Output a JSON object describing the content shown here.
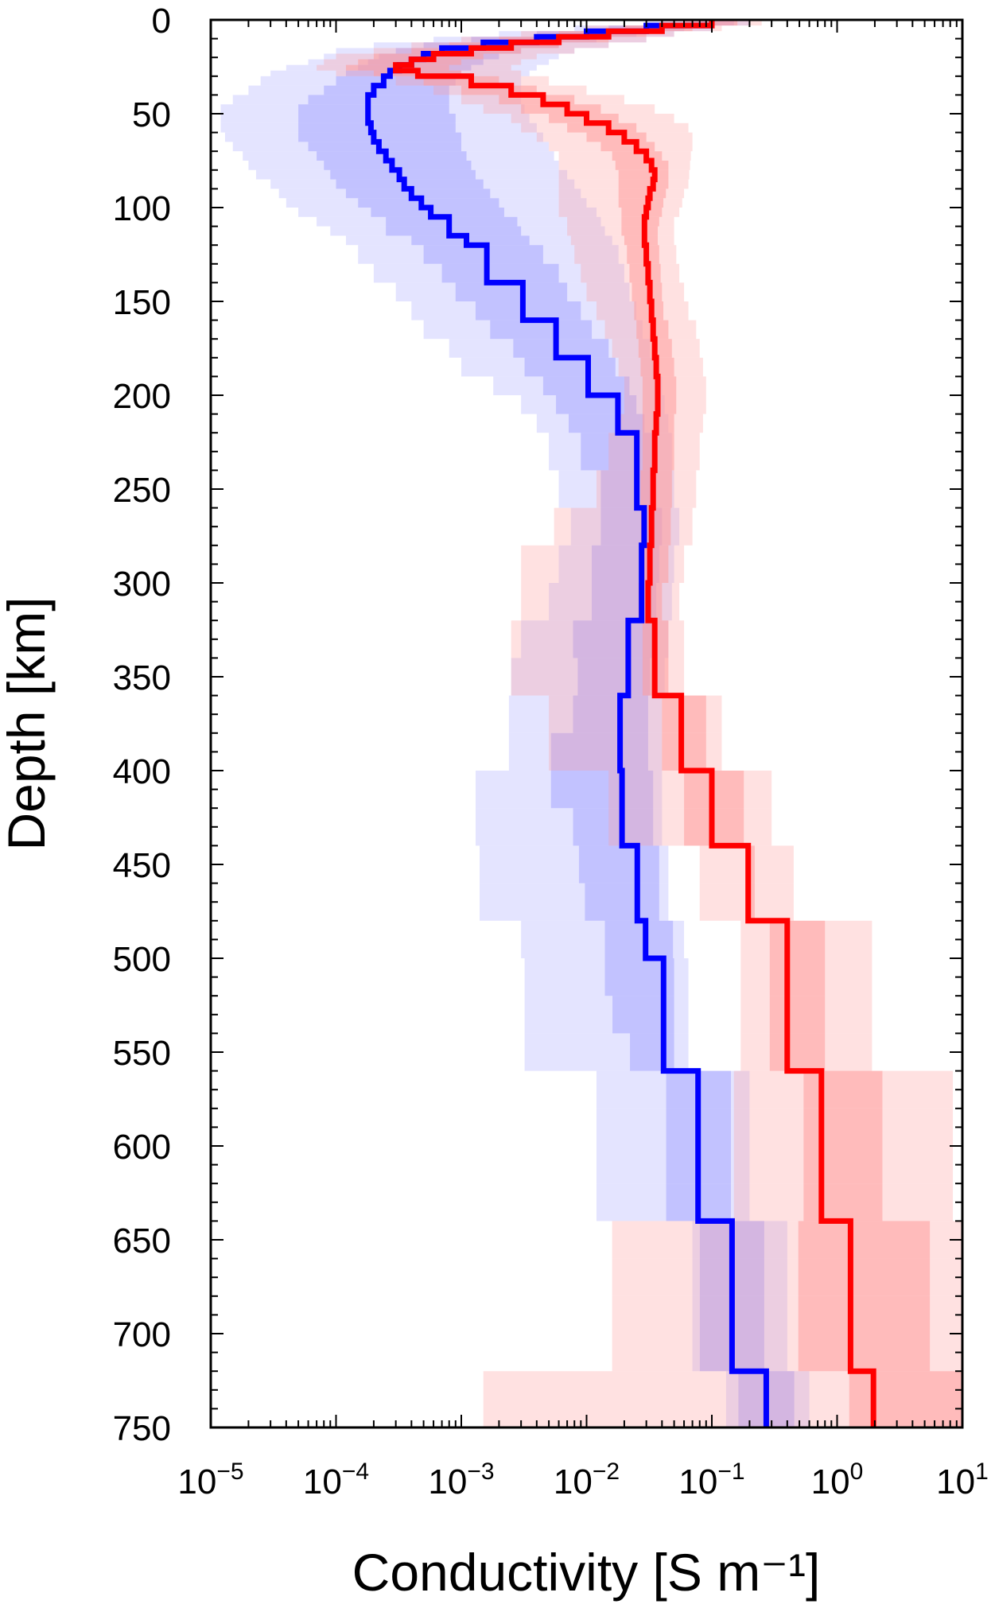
{
  "chart_data": {
    "type": "line",
    "xlabel": "Conductivity [S m⁻¹]",
    "ylabel": "Depth [km]",
    "x_scale": "log",
    "xlim": [
      1e-05,
      10
    ],
    "ylim": [
      0,
      750
    ],
    "y_inverted": true,
    "x_ticks": [
      {
        "value": 1e-05,
        "base": "10",
        "exp": "−5"
      },
      {
        "value": 0.0001,
        "base": "10",
        "exp": "−4"
      },
      {
        "value": 0.001,
        "base": "10",
        "exp": "−3"
      },
      {
        "value": 0.01,
        "base": "10",
        "exp": "−2"
      },
      {
        "value": 0.1,
        "base": "10",
        "exp": "−1"
      },
      {
        "value": 1,
        "base": "10",
        "exp": "0"
      },
      {
        "value": 10,
        "base": "10",
        "exp": "1"
      }
    ],
    "y_ticks": [
      0,
      50,
      100,
      150,
      200,
      250,
      300,
      350,
      400,
      450,
      500,
      550,
      600,
      650,
      700,
      750
    ],
    "grid": false,
    "colors": {
      "blue": "#0000ff",
      "red": "#ff0000",
      "blue_band": "#a6a6ff",
      "red_band": "#ff9c9c"
    },
    "series": [
      {
        "color": "blue",
        "depth_bounds": [
          0,
          3,
          6,
          9,
          12,
          15,
          18,
          21,
          24,
          27,
          30,
          35,
          40,
          45,
          50,
          55,
          60,
          65,
          70,
          75,
          80,
          85,
          90,
          95,
          100,
          105,
          110,
          115,
          120,
          130,
          140,
          150,
          160,
          170,
          180,
          190,
          200,
          210,
          220,
          240,
          260,
          280,
          300,
          320,
          340,
          360,
          380,
          400,
          420,
          440,
          460,
          480,
          500,
          520,
          540,
          560,
          580,
          600,
          620,
          640,
          660,
          680,
          700,
          720,
          750
        ],
        "conductivity": [
          0.1,
          0.03,
          0.01,
          0.004,
          0.0015,
          0.0007,
          0.0005,
          0.0004,
          0.00032,
          0.00027,
          0.00024,
          0.0002,
          0.00018,
          0.00018,
          0.00018,
          0.00019,
          0.0002,
          0.00022,
          0.00025,
          0.00028,
          0.00032,
          0.00035,
          0.0004,
          0.00048,
          0.00057,
          0.0008,
          0.0008,
          0.0011,
          0.0016,
          0.0016,
          0.0031,
          0.0031,
          0.0057,
          0.0057,
          0.0103,
          0.0103,
          0.0178,
          0.0178,
          0.0252,
          0.0252,
          0.0288,
          0.0275,
          0.0275,
          0.0215,
          0.0215,
          0.0185,
          0.0185,
          0.0192,
          0.0192,
          0.0254,
          0.0254,
          0.0296,
          0.0412,
          0.0412,
          0.0412,
          0.0777,
          0.0777,
          0.0777,
          0.0777,
          0.145,
          0.145,
          0.145,
          0.145,
          0.272,
          0.272
        ],
        "band_inner_low": [
          0.06,
          0.015,
          0.004,
          0.0012,
          0.0005,
          0.0003,
          0.00022,
          0.00018,
          0.00015,
          0.00012,
          0.0001,
          8e-05,
          6e-05,
          5e-05,
          5e-05,
          5e-05,
          5e-05,
          6e-05,
          7e-05,
          8e-05,
          9e-05,
          0.0001,
          0.00012,
          0.00015,
          0.00019,
          0.00025,
          0.00025,
          0.0004,
          0.0005,
          0.0007,
          0.0009,
          0.0013,
          0.0017,
          0.0026,
          0.0032,
          0.0045,
          0.0057,
          0.0072,
          0.009,
          0.013,
          0.013,
          0.011,
          0.011,
          0.0078,
          0.0085,
          0.0078,
          0.0052,
          0.0052,
          0.0078,
          0.0087,
          0.0097,
          0.014,
          0.014,
          0.0161,
          0.0222,
          0.0432,
          0.0432,
          0.0432,
          0.0432,
          0.0802,
          0.0802,
          0.0802,
          0.0802,
          0.163,
          0.163
        ],
        "band_inner_high": [
          0.15,
          0.06,
          0.025,
          0.012,
          0.006,
          0.003,
          0.002,
          0.0015,
          0.0012,
          0.001,
          0.0009,
          0.0008,
          0.0008,
          0.0008,
          0.0009,
          0.0009,
          0.001,
          0.001,
          0.0011,
          0.0012,
          0.0013,
          0.0015,
          0.0017,
          0.002,
          0.0022,
          0.0028,
          0.003,
          0.0035,
          0.0045,
          0.006,
          0.007,
          0.009,
          0.011,
          0.015,
          0.017,
          0.022,
          0.025,
          0.029,
          0.033,
          0.034,
          0.04,
          0.038,
          0.036,
          0.034,
          0.032,
          0.031,
          0.031,
          0.034,
          0.034,
          0.038,
          0.038,
          0.049,
          0.05,
          0.05,
          0.05,
          0.142,
          0.142,
          0.142,
          0.142,
          0.262,
          0.262,
          0.262,
          0.262,
          0.455,
          0.455
        ],
        "band_outer_low": [
          0.03,
          0.008,
          0.002,
          0.0006,
          0.0002,
          0.0001,
          8e-05,
          6e-05,
          4e-05,
          3e-05,
          2.5e-05,
          2e-05,
          1.5e-05,
          1.2e-05,
          1.2e-05,
          1.2e-05,
          1.3e-05,
          1.5e-05,
          1.8e-05,
          2e-05,
          2.3e-05,
          3e-05,
          3.5e-05,
          4e-05,
          5e-05,
          7e-05,
          9e-05,
          0.00012,
          0.00015,
          0.0002,
          0.0003,
          0.0004,
          0.0005,
          0.0008,
          0.001,
          0.0018,
          0.003,
          0.004,
          0.005,
          0.006,
          0.0075,
          0.006,
          0.005,
          0.003,
          0.0025,
          0.0024,
          0.0024,
          0.0013,
          0.0013,
          0.0014,
          0.0014,
          0.003,
          0.0032,
          0.0032,
          0.0032,
          0.012,
          0.012,
          0.012,
          0.012,
          0.07,
          0.07,
          0.07,
          0.07,
          0.13,
          0.13
        ],
        "band_outer_high": [
          0.2,
          0.1,
          0.05,
          0.03,
          0.015,
          0.008,
          0.006,
          0.005,
          0.004,
          0.0035,
          0.003,
          0.003,
          0.003,
          0.0032,
          0.0035,
          0.004,
          0.0045,
          0.005,
          0.0055,
          0.006,
          0.007,
          0.008,
          0.009,
          0.01,
          0.012,
          0.013,
          0.014,
          0.016,
          0.018,
          0.02,
          0.022,
          0.025,
          0.028,
          0.032,
          0.035,
          0.04,
          0.042,
          0.045,
          0.048,
          0.05,
          0.055,
          0.05,
          0.048,
          0.045,
          0.042,
          0.04,
          0.04,
          0.04,
          0.04,
          0.045,
          0.045,
          0.06,
          0.065,
          0.065,
          0.065,
          0.2,
          0.2,
          0.2,
          0.2,
          0.4,
          0.4,
          0.4,
          0.4,
          0.6,
          0.6
        ]
      },
      {
        "color": "red",
        "depth_bounds": [
          0,
          3,
          6,
          9,
          12,
          15,
          18,
          21,
          24,
          27,
          30,
          35,
          40,
          45,
          50,
          55,
          60,
          65,
          70,
          75,
          80,
          85,
          90,
          95,
          100,
          105,
          110,
          115,
          120,
          130,
          140,
          150,
          160,
          170,
          180,
          190,
          200,
          210,
          220,
          240,
          260,
          280,
          300,
          320,
          340,
          360,
          380,
          400,
          420,
          440,
          460,
          480,
          500,
          520,
          540,
          560,
          580,
          600,
          620,
          640,
          660,
          680,
          700,
          720,
          750
        ],
        "conductivity": [
          0.1,
          0.04,
          0.015,
          0.006,
          0.0025,
          0.0012,
          0.0006,
          0.0004,
          0.0003,
          0.00045,
          0.0012,
          0.0025,
          0.0045,
          0.007,
          0.01,
          0.015,
          0.02,
          0.025,
          0.03,
          0.033,
          0.035,
          0.034,
          0.032,
          0.031,
          0.03,
          0.029,
          0.029,
          0.029,
          0.03,
          0.031,
          0.032,
          0.033,
          0.034,
          0.035,
          0.036,
          0.037,
          0.037,
          0.036,
          0.035,
          0.034,
          0.033,
          0.032,
          0.031,
          0.035,
          0.035,
          0.057,
          0.057,
          0.1,
          0.1,
          0.195,
          0.195,
          0.4,
          0.4,
          0.4,
          0.4,
          0.75,
          0.75,
          0.75,
          0.75,
          1.28,
          1.28,
          1.28,
          1.28,
          1.95,
          1.95
        ],
        "band_inner_low": [
          0.06,
          0.02,
          0.006,
          0.002,
          0.0008,
          0.0004,
          0.0002,
          0.00015,
          0.00012,
          0.0002,
          0.0005,
          0.001,
          0.002,
          0.003,
          0.005,
          0.007,
          0.01,
          0.013,
          0.016,
          0.017,
          0.018,
          0.018,
          0.018,
          0.018,
          0.019,
          0.019,
          0.019,
          0.02,
          0.021,
          0.022,
          0.023,
          0.024,
          0.025,
          0.026,
          0.027,
          0.028,
          0.028,
          0.028,
          0.028,
          0.027,
          0.027,
          0.027,
          0.026,
          0.028,
          0.028,
          0.04,
          0.04,
          0.06,
          0.06,
          0.2,
          0.2,
          0.29,
          0.29,
          0.29,
          0.29,
          0.54,
          0.54,
          0.54,
          0.54,
          0.49,
          0.49,
          0.49,
          0.49,
          1.25,
          1.25
        ],
        "band_inner_high": [
          0.16,
          0.07,
          0.03,
          0.015,
          0.006,
          0.003,
          0.0015,
          0.001,
          0.0008,
          0.001,
          0.002,
          0.004,
          0.008,
          0.013,
          0.018,
          0.025,
          0.03,
          0.035,
          0.04,
          0.045,
          0.045,
          0.045,
          0.043,
          0.041,
          0.04,
          0.038,
          0.037,
          0.037,
          0.038,
          0.039,
          0.04,
          0.041,
          0.045,
          0.048,
          0.05,
          0.052,
          0.052,
          0.05,
          0.05,
          0.048,
          0.047,
          0.045,
          0.04,
          0.045,
          0.045,
          0.09,
          0.09,
          0.18,
          0.18,
          0.22,
          0.22,
          0.8,
          0.8,
          0.8,
          0.8,
          2.3,
          2.3,
          2.3,
          2.3,
          5.5,
          5.5,
          5.5,
          5.5,
          10,
          10
        ],
        "band_outer_low": [
          0.04,
          0.01,
          0.003,
          0.001,
          0.0004,
          0.0002,
          0.0001,
          8e-05,
          7e-05,
          0.0001,
          0.0003,
          0.0006,
          0.001,
          0.0015,
          0.0025,
          0.003,
          0.004,
          0.005,
          0.006,
          0.006,
          0.006,
          0.006,
          0.006,
          0.006,
          0.006,
          0.007,
          0.007,
          0.0075,
          0.008,
          0.009,
          0.01,
          0.012,
          0.014,
          0.016,
          0.018,
          0.02,
          0.02,
          0.017,
          0.015,
          0.012,
          0.0055,
          0.003,
          0.003,
          0.0025,
          0.0025,
          0.005,
          0.005,
          0.015,
          0.015,
          0.08,
          0.08,
          0.17,
          0.17,
          0.17,
          0.17,
          0.15,
          0.15,
          0.15,
          0.15,
          0.016,
          0.016,
          0.016,
          0.016,
          0.0015,
          0.0015
        ],
        "band_outer_high": [
          0.25,
          0.12,
          0.05,
          0.03,
          0.015,
          0.008,
          0.004,
          0.003,
          0.0025,
          0.003,
          0.005,
          0.01,
          0.02,
          0.035,
          0.05,
          0.065,
          0.07,
          0.07,
          0.068,
          0.067,
          0.066,
          0.065,
          0.06,
          0.058,
          0.055,
          0.05,
          0.05,
          0.05,
          0.052,
          0.055,
          0.06,
          0.065,
          0.075,
          0.08,
          0.085,
          0.09,
          0.09,
          0.085,
          0.08,
          0.075,
          0.07,
          0.06,
          0.055,
          0.06,
          0.06,
          0.12,
          0.12,
          0.3,
          0.3,
          0.45,
          0.45,
          1.9,
          1.9,
          1.9,
          1.9,
          8.4,
          8.4,
          8.4,
          8.4,
          10,
          10,
          10,
          10,
          10,
          10
        ]
      }
    ]
  }
}
